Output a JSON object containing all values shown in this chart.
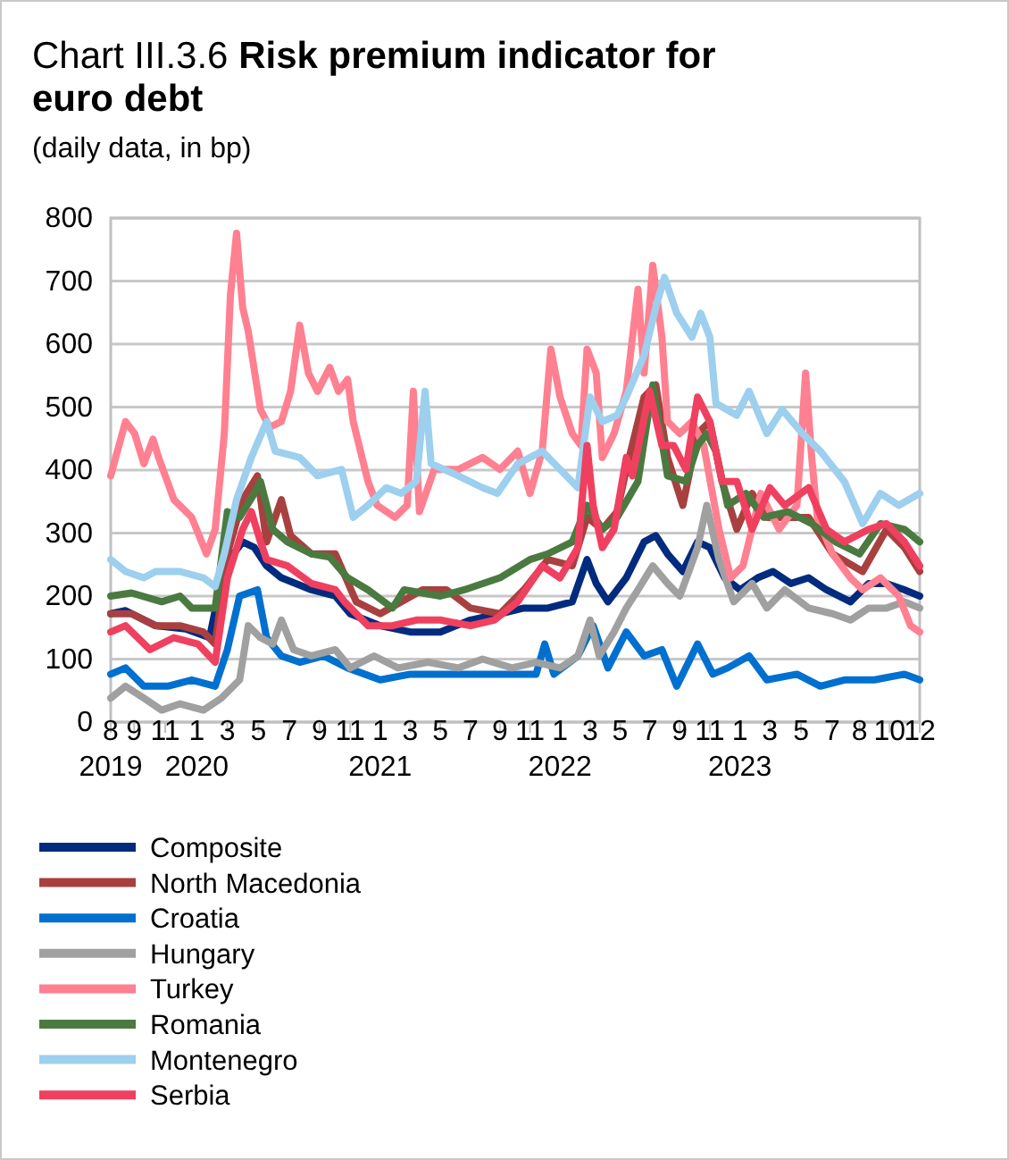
{
  "chart_data": {
    "type": "line",
    "title": "Chart III.3.6 Risk premium indicator for euro debt",
    "subtitle": "(daily data, in bp)",
    "ylim": [
      0,
      800
    ],
    "yticks": [
      0,
      100,
      200,
      300,
      400,
      500,
      600,
      700,
      800
    ],
    "xlim": [
      "2019-08-15",
      "2023-12-20"
    ],
    "xticks": [
      {
        "value": "2019-08-15",
        "label": "8\n2019"
      },
      {
        "value": "2019-09-30",
        "label": "9"
      },
      {
        "value": "2019-11-30",
        "label": "11"
      },
      {
        "value": "2020-01-31",
        "label": "1\n2020"
      },
      {
        "value": "2020-03-31",
        "label": "3"
      },
      {
        "value": "2020-05-31",
        "label": "5"
      },
      {
        "value": "2020-07-31",
        "label": "7"
      },
      {
        "value": "2020-09-28",
        "label": "9"
      },
      {
        "value": "2020-11-27",
        "label": "11"
      },
      {
        "value": "2021-01-25",
        "label": "1\n2021"
      },
      {
        "value": "2021-03-25",
        "label": "3"
      },
      {
        "value": "2021-05-23",
        "label": "5"
      },
      {
        "value": "2021-07-21",
        "label": "7"
      },
      {
        "value": "2021-09-17",
        "label": "9"
      },
      {
        "value": "2021-11-15",
        "label": "11"
      },
      {
        "value": "2022-01-13",
        "label": "1\n2022"
      },
      {
        "value": "2022-03-13",
        "label": "3"
      },
      {
        "value": "2022-05-11",
        "label": "5"
      },
      {
        "value": "2022-07-08",
        "label": "7"
      },
      {
        "value": "2022-09-05",
        "label": "9"
      },
      {
        "value": "2022-11-03",
        "label": "11"
      },
      {
        "value": "2023-01-01",
        "label": "1\n2023"
      },
      {
        "value": "2023-03-01",
        "label": "3"
      },
      {
        "value": "2023-05-01",
        "label": "5"
      },
      {
        "value": "2023-07-01",
        "label": "7"
      },
      {
        "value": "2023-08-24",
        "label": "8"
      },
      {
        "value": "2023-10-22",
        "label": "10"
      },
      {
        "value": "2023-12-20",
        "label": "12"
      }
    ],
    "grid": "y",
    "legend": "bottom",
    "line_style": "solid",
    "marker": "none",
    "series": [
      {
        "name": "Composite",
        "color": "#002b7f",
        "x": [
          "2019-08-15",
          "2019-09-13",
          "2019-11-11",
          "2020-01-09",
          "2020-02-25",
          "2020-03-25",
          "2020-04-30",
          "2020-05-23",
          "2020-06-16",
          "2020-07-15",
          "2020-09-12",
          "2020-10-29",
          "2020-11-27",
          "2021-01-25",
          "2021-03-25",
          "2021-05-23",
          "2021-07-21",
          "2021-09-17",
          "2021-11-03",
          "2021-12-20",
          "2022-02-06",
          "2022-03-07",
          "2022-03-25",
          "2022-04-17",
          "2022-05-23",
          "2022-06-27",
          "2022-07-20",
          "2022-08-12",
          "2022-09-11",
          "2022-10-10",
          "2022-11-03",
          "2022-12-02",
          "2023-01-01",
          "2023-02-05",
          "2023-03-07",
          "2023-04-11",
          "2023-05-16",
          "2023-06-20",
          "2023-08-06",
          "2023-09-11",
          "2023-10-16",
          "2023-11-20",
          "2023-12-20"
        ],
        "values": [
          172,
          177,
          153,
          148,
          134,
          248,
          286,
          277,
          248,
          229,
          210,
          200,
          172,
          153,
          143,
          143,
          162,
          172,
          181,
          181,
          191,
          258,
          220,
          191,
          229,
          286,
          296,
          267,
          239,
          286,
          277,
          229,
          210,
          229,
          239,
          220,
          229,
          210,
          191,
          220,
          220,
          210,
          200
        ]
      },
      {
        "name": "North Macedonia",
        "color": "#a84040",
        "x": [
          "2019-08-15",
          "2019-09-25",
          "2019-11-11",
          "2019-12-29",
          "2020-02-13",
          "2020-03-07",
          "2020-03-31",
          "2020-04-30",
          "2020-05-29",
          "2020-06-16",
          "2020-07-15",
          "2020-08-02",
          "2020-09-12",
          "2020-10-29",
          "2020-12-09",
          "2021-01-25",
          "2021-04-18",
          "2021-06-04",
          "2021-07-21",
          "2021-09-17",
          "2021-11-03",
          "2021-12-20",
          "2022-02-06",
          "2022-03-07",
          "2022-04-06",
          "2022-05-05",
          "2022-05-23",
          "2022-06-27",
          "2022-07-20",
          "2022-08-12",
          "2022-09-11",
          "2022-10-10",
          "2022-11-03",
          "2022-11-27",
          "2022-12-26",
          "2023-01-25",
          "2023-02-23",
          "2023-03-30",
          "2023-05-16",
          "2023-07-02",
          "2023-08-30",
          "2023-10-16",
          "2023-11-20",
          "2023-12-20"
        ],
        "values": [
          172,
          172,
          153,
          153,
          143,
          124,
          267,
          353,
          391,
          286,
          353,
          296,
          267,
          267,
          191,
          172,
          210,
          210,
          181,
          172,
          210,
          258,
          248,
          325,
          306,
          334,
          401,
          516,
          535,
          420,
          344,
          458,
          477,
          382,
          306,
          363,
          325,
          325,
          325,
          267,
          239,
          306,
          277,
          239
        ]
      },
      {
        "name": "Croatia",
        "color": "#0070d0",
        "x": [
          "2019-08-15",
          "2019-09-13",
          "2019-10-19",
          "2019-12-05",
          "2020-01-21",
          "2020-03-07",
          "2020-03-31",
          "2020-04-24",
          "2020-05-29",
          "2020-06-16",
          "2020-07-15",
          "2020-08-20",
          "2020-10-06",
          "2020-11-22",
          "2021-01-25",
          "2021-03-25",
          "2021-06-27",
          "2021-09-17",
          "2021-11-27",
          "2021-12-14",
          "2022-01-01",
          "2022-02-17",
          "2022-03-19",
          "2022-04-17",
          "2022-05-23",
          "2022-06-27",
          "2022-08-01",
          "2022-08-30",
          "2022-10-10",
          "2022-11-09",
          "2022-12-08",
          "2023-01-19",
          "2023-02-23",
          "2023-04-23",
          "2023-06-08",
          "2023-07-25",
          "2023-09-22",
          "2023-11-20",
          "2023-12-20"
        ],
        "values": [
          76,
          86,
          57,
          57,
          67,
          57,
          115,
          200,
          210,
          134,
          105,
          95,
          105,
          86,
          67,
          76,
          76,
          76,
          76,
          124,
          76,
          105,
          153,
          86,
          143,
          105,
          115,
          57,
          124,
          76,
          86,
          105,
          67,
          76,
          57,
          67,
          67,
          76,
          67
        ]
      },
      {
        "name": "Hungary",
        "color": "#a0a0a0",
        "x": [
          "2019-08-15",
          "2019-09-13",
          "2019-10-19",
          "2019-11-23",
          "2019-12-29",
          "2020-02-13",
          "2020-03-19",
          "2020-04-24",
          "2020-05-11",
          "2020-06-04",
          "2020-06-28",
          "2020-07-15",
          "2020-08-08",
          "2020-09-12",
          "2020-10-29",
          "2020-11-27",
          "2021-01-13",
          "2021-03-01",
          "2021-04-29",
          "2021-06-27",
          "2021-08-14",
          "2021-10-11",
          "2021-11-27",
          "2022-01-13",
          "2022-02-17",
          "2022-03-13",
          "2022-03-31",
          "2022-04-29",
          "2022-05-23",
          "2022-06-15",
          "2022-07-14",
          "2022-08-12",
          "2022-09-05",
          "2022-10-10",
          "2022-10-28",
          "2022-11-21",
          "2022-12-20",
          "2023-01-25",
          "2023-02-23",
          "2023-03-30",
          "2023-05-16",
          "2023-07-02",
          "2023-08-06",
          "2023-09-11",
          "2023-10-16",
          "2023-11-20",
          "2023-12-20"
        ],
        "values": [
          38,
          57,
          38,
          19,
          29,
          19,
          38,
          67,
          153,
          134,
          124,
          162,
          115,
          105,
          115,
          86,
          105,
          86,
          95,
          86,
          100,
          86,
          95,
          86,
          105,
          162,
          105,
          143,
          181,
          210,
          248,
          220,
          200,
          277,
          344,
          258,
          191,
          220,
          181,
          210,
          181,
          172,
          162,
          181,
          181,
          191,
          181
        ]
      },
      {
        "name": "Turkey",
        "color": "#ff8090",
        "x": [
          "2019-08-15",
          "2019-09-13",
          "2019-10-01",
          "2019-10-19",
          "2019-11-06",
          "2019-11-17",
          "2019-12-17",
          "2020-01-21",
          "2020-02-19",
          "2020-03-07",
          "2020-03-25",
          "2020-04-06",
          "2020-04-18",
          "2020-04-30",
          "2020-05-11",
          "2020-06-04",
          "2020-06-22",
          "2020-07-15",
          "2020-08-02",
          "2020-08-20",
          "2020-09-06",
          "2020-09-24",
          "2020-10-18",
          "2020-11-04",
          "2020-11-22",
          "2020-12-03",
          "2021-01-01",
          "2021-01-19",
          "2021-02-23",
          "2021-03-19",
          "2021-03-31",
          "2021-04-12",
          "2021-05-11",
          "2021-06-27",
          "2021-08-14",
          "2021-09-17",
          "2021-10-22",
          "2021-11-15",
          "2021-12-09",
          "2021-12-26",
          "2022-01-13",
          "2022-02-06",
          "2022-02-23",
          "2022-03-07",
          "2022-03-25",
          "2022-04-06",
          "2022-04-29",
          "2022-05-23",
          "2022-06-15",
          "2022-06-27",
          "2022-07-14",
          "2022-08-01",
          "2022-08-12",
          "2022-09-05",
          "2022-09-29",
          "2022-10-22",
          "2022-11-21",
          "2022-12-14",
          "2023-01-07",
          "2023-02-11",
          "2023-03-19",
          "2023-04-23",
          "2023-05-10",
          "2023-05-22",
          "2023-06-02",
          "2023-07-02",
          "2023-08-06",
          "2023-08-30",
          "2023-10-04",
          "2023-11-09",
          "2023-12-02",
          "2023-12-20"
        ],
        "values": [
          391,
          477,
          458,
          410,
          449,
          420,
          353,
          325,
          267,
          306,
          458,
          678,
          776,
          658,
          620,
          496,
          468,
          477,
          525,
          630,
          554,
          525,
          563,
          525,
          544,
          477,
          382,
          344,
          325,
          344,
          525,
          334,
          401,
          401,
          420,
          401,
          430,
          363,
          430,
          592,
          516,
          458,
          439,
          592,
          554,
          420,
          458,
          525,
          687,
          554,
          725,
          611,
          477,
          458,
          477,
          439,
          306,
          229,
          248,
          363,
          306,
          344,
          554,
          420,
          325,
          267,
          229,
          210,
          229,
          200,
          153,
          143
        ]
      },
      {
        "name": "Romania",
        "color": "#4a7a40",
        "x": [
          "2019-08-15",
          "2019-09-25",
          "2019-11-23",
          "2019-12-29",
          "2020-01-21",
          "2020-03-07",
          "2020-03-31",
          "2020-04-24",
          "2020-05-23",
          "2020-06-04",
          "2020-06-28",
          "2020-07-27",
          "2020-09-12",
          "2020-10-18",
          "2020-11-22",
          "2021-01-01",
          "2021-02-18",
          "2021-03-13",
          "2021-05-23",
          "2021-07-09",
          "2021-09-17",
          "2021-11-15",
          "2021-12-20",
          "2022-02-06",
          "2022-03-07",
          "2022-04-06",
          "2022-05-05",
          "2022-06-15",
          "2022-07-14",
          "2022-08-12",
          "2022-09-17",
          "2022-10-10",
          "2022-10-28",
          "2022-11-15",
          "2022-12-08",
          "2023-01-13",
          "2023-02-17",
          "2023-04-05",
          "2023-05-22",
          "2023-07-08",
          "2023-08-24",
          "2023-10-04",
          "2023-11-20",
          "2023-12-20"
        ],
        "values": [
          200,
          205,
          191,
          200,
          181,
          181,
          334,
          325,
          363,
          382,
          306,
          286,
          267,
          262,
          229,
          210,
          181,
          210,
          200,
          210,
          229,
          258,
          267,
          286,
          344,
          306,
          325,
          382,
          535,
          391,
          382,
          439,
          458,
          430,
          344,
          363,
          325,
          334,
          315,
          286,
          267,
          315,
          306,
          286
        ]
      },
      {
        "name": "Montenegro",
        "color": "#9dcfee",
        "x": [
          "2019-08-15",
          "2019-09-13",
          "2019-10-19",
          "2019-11-11",
          "2019-12-29",
          "2020-02-13",
          "2020-03-07",
          "2020-03-25",
          "2020-04-18",
          "2020-05-17",
          "2020-06-16",
          "2020-07-03",
          "2020-08-20",
          "2020-09-24",
          "2020-11-10",
          "2020-12-03",
          "2021-01-01",
          "2021-02-06",
          "2021-03-07",
          "2021-04-06",
          "2021-04-23",
          "2021-05-05",
          "2021-06-27",
          "2021-08-14",
          "2021-09-12",
          "2021-10-22",
          "2021-12-09",
          "2022-01-13",
          "2022-02-17",
          "2022-03-13",
          "2022-04-06",
          "2022-05-05",
          "2022-05-23",
          "2022-06-27",
          "2022-07-20",
          "2022-08-06",
          "2022-08-30",
          "2022-09-29",
          "2022-10-16",
          "2022-11-03",
          "2022-11-15",
          "2022-12-26",
          "2023-01-19",
          "2023-02-23",
          "2023-03-25",
          "2023-05-04",
          "2023-06-08",
          "2023-07-25",
          "2023-08-30",
          "2023-10-04",
          "2023-11-09",
          "2023-12-20"
        ],
        "values": [
          258,
          239,
          229,
          239,
          239,
          229,
          215,
          267,
          353,
          420,
          477,
          430,
          420,
          391,
          401,
          325,
          344,
          372,
          363,
          382,
          525,
          410,
          391,
          372,
          363,
          410,
          430,
          401,
          372,
          516,
          477,
          487,
          516,
          582,
          659,
          706,
          649,
          611,
          649,
          611,
          506,
          487,
          525,
          458,
          496,
          458,
          430,
          382,
          315,
          363,
          344,
          363
        ]
      },
      {
        "name": "Serbia",
        "color": "#f04060",
        "x": [
          "2019-08-15",
          "2019-09-13",
          "2019-10-31",
          "2019-12-17",
          "2020-02-02",
          "2020-03-07",
          "2020-03-31",
          "2020-04-30",
          "2020-05-17",
          "2020-06-04",
          "2020-06-16",
          "2020-07-27",
          "2020-09-12",
          "2020-10-29",
          "2020-11-16",
          "2021-01-01",
          "2021-02-18",
          "2021-04-06",
          "2021-05-23",
          "2021-07-21",
          "2021-09-06",
          "2021-10-22",
          "2021-12-09",
          "2022-01-13",
          "2022-02-17",
          "2022-03-07",
          "2022-03-19",
          "2022-04-06",
          "2022-04-29",
          "2022-05-23",
          "2022-06-04",
          "2022-07-08",
          "2022-08-01",
          "2022-08-24",
          "2022-09-17",
          "2022-10-10",
          "2022-11-03",
          "2022-11-27",
          "2022-12-26",
          "2023-01-25",
          "2023-03-01",
          "2023-03-30",
          "2023-05-16",
          "2023-06-20",
          "2023-07-25",
          "2023-09-11",
          "2023-10-16",
          "2023-11-20",
          "2023-12-20"
        ],
        "values": [
          143,
          153,
          115,
          134,
          124,
          95,
          229,
          306,
          334,
          286,
          258,
          248,
          220,
          210,
          191,
          153,
          153,
          162,
          162,
          153,
          162,
          191,
          248,
          229,
          277,
          439,
          344,
          277,
          306,
          420,
          391,
          525,
          439,
          439,
          401,
          516,
          477,
          382,
          382,
          306,
          372,
          344,
          372,
          306,
          286,
          306,
          315,
          286,
          248
        ]
      }
    ]
  }
}
